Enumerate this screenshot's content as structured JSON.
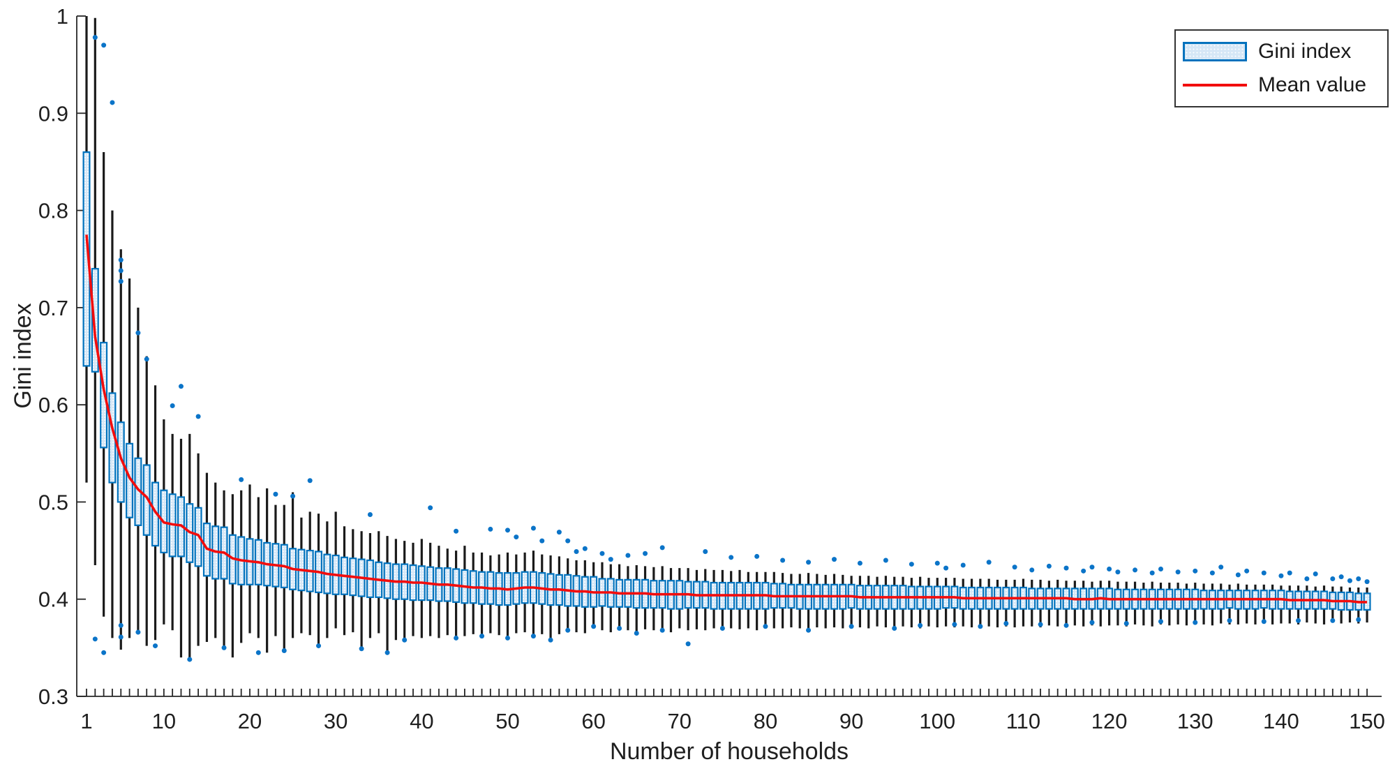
{
  "figure": {
    "background": "#ffffff"
  },
  "legend": {
    "items": [
      {
        "label": "Gini index",
        "swatch": "box-swatch"
      },
      {
        "label": "Mean value",
        "swatch": "line-swatch"
      }
    ]
  },
  "colors": {
    "box_edge": "#0072bd",
    "box_fill": "#d6e7f6",
    "whisker": "#1a1a1a",
    "mean_line": "#f20d0d",
    "outlier": "#0b74c8",
    "axis": "#262626",
    "tick_text": "#1f1f1f",
    "background": "#ffffff"
  },
  "chart_data": {
    "type": "boxplot",
    "title": "",
    "xlabel": "Number of households",
    "ylabel": "Gini index",
    "xlim": [
      0,
      151
    ],
    "ylim": [
      0.3,
      1.0
    ],
    "grid": false,
    "legend_position": "top-right-inside",
    "x_major_ticks": [
      1,
      10,
      20,
      30,
      40,
      50,
      60,
      70,
      80,
      90,
      100,
      110,
      120,
      130,
      140,
      150
    ],
    "x_minor_tick_step": 1,
    "y_ticks": [
      0.3,
      0.4,
      0.5,
      0.6,
      0.7,
      0.8,
      0.9,
      1.0
    ],
    "y_tick_labels": [
      "0.3",
      "0.4",
      "0.5",
      "0.6",
      "0.7",
      "0.8",
      "0.9",
      "1"
    ],
    "series": {
      "n_range": [
        1,
        150
      ],
      "mean": [
        0.775,
        0.67,
        0.616,
        0.576,
        0.545,
        0.525,
        0.513,
        0.505,
        0.49,
        0.479,
        0.477,
        0.476,
        0.469,
        0.466,
        0.452,
        0.449,
        0.448,
        0.442,
        0.44,
        0.439,
        0.438,
        0.436,
        0.435,
        0.434,
        0.431,
        0.43,
        0.429,
        0.428,
        0.426,
        0.425,
        0.424,
        0.423,
        0.422,
        0.421,
        0.42,
        0.419,
        0.418,
        0.418,
        0.417,
        0.417,
        0.416,
        0.415,
        0.415,
        0.414,
        0.413,
        0.412,
        0.412,
        0.411,
        0.411,
        0.41,
        0.411,
        0.412,
        0.412,
        0.411,
        0.41,
        0.41,
        0.409,
        0.408,
        0.408,
        0.407,
        0.407,
        0.407,
        0.406,
        0.406,
        0.406,
        0.406,
        0.405,
        0.405,
        0.405,
        0.405,
        0.405,
        0.404,
        0.404,
        0.404,
        0.404,
        0.404,
        0.404,
        0.404,
        0.404,
        0.404,
        0.403,
        0.403,
        0.403,
        0.403,
        0.403,
        0.403,
        0.403,
        0.403,
        0.403,
        0.403,
        0.402,
        0.402,
        0.402,
        0.402,
        0.402,
        0.402,
        0.402,
        0.402,
        0.402,
        0.402,
        0.402,
        0.402,
        0.401,
        0.401,
        0.401,
        0.401,
        0.401,
        0.401,
        0.401,
        0.401,
        0.401,
        0.401,
        0.401,
        0.401,
        0.401,
        0.4,
        0.4,
        0.4,
        0.401,
        0.4,
        0.4,
        0.4,
        0.4,
        0.4,
        0.4,
        0.4,
        0.4,
        0.4,
        0.4,
        0.4,
        0.4,
        0.4,
        0.4,
        0.4,
        0.4,
        0.4,
        0.4,
        0.4,
        0.4,
        0.4,
        0.399,
        0.399,
        0.399,
        0.399,
        0.399,
        0.398,
        0.398,
        0.398,
        0.397,
        0.397
      ],
      "q1": [
        0.64,
        0.634,
        0.556,
        0.52,
        0.5,
        0.484,
        0.476,
        0.466,
        0.455,
        0.448,
        0.444,
        0.444,
        0.438,
        0.434,
        0.424,
        0.421,
        0.421,
        0.416,
        0.415,
        0.415,
        0.415,
        0.414,
        0.413,
        0.412,
        0.41,
        0.409,
        0.408,
        0.407,
        0.406,
        0.405,
        0.405,
        0.404,
        0.403,
        0.402,
        0.402,
        0.401,
        0.4,
        0.4,
        0.399,
        0.399,
        0.399,
        0.398,
        0.398,
        0.397,
        0.396,
        0.396,
        0.395,
        0.395,
        0.394,
        0.394,
        0.395,
        0.396,
        0.396,
        0.395,
        0.394,
        0.394,
        0.393,
        0.393,
        0.392,
        0.392,
        0.393,
        0.392,
        0.392,
        0.392,
        0.391,
        0.391,
        0.391,
        0.391,
        0.39,
        0.39,
        0.391,
        0.391,
        0.391,
        0.39,
        0.39,
        0.39,
        0.39,
        0.39,
        0.39,
        0.39,
        0.391,
        0.391,
        0.391,
        0.39,
        0.39,
        0.39,
        0.39,
        0.39,
        0.39,
        0.391,
        0.39,
        0.39,
        0.39,
        0.39,
        0.39,
        0.39,
        0.39,
        0.39,
        0.39,
        0.39,
        0.391,
        0.391,
        0.39,
        0.39,
        0.39,
        0.39,
        0.39,
        0.39,
        0.39,
        0.39,
        0.39,
        0.39,
        0.39,
        0.39,
        0.39,
        0.39,
        0.39,
        0.39,
        0.39,
        0.39,
        0.39,
        0.39,
        0.39,
        0.39,
        0.39,
        0.39,
        0.39,
        0.39,
        0.39,
        0.39,
        0.39,
        0.39,
        0.39,
        0.391,
        0.39,
        0.39,
        0.39,
        0.391,
        0.39,
        0.39,
        0.39,
        0.39,
        0.39,
        0.39,
        0.39,
        0.39,
        0.389,
        0.389,
        0.389,
        0.389
      ],
      "q3": [
        0.86,
        0.74,
        0.664,
        0.612,
        0.582,
        0.56,
        0.545,
        0.538,
        0.52,
        0.512,
        0.508,
        0.505,
        0.498,
        0.494,
        0.478,
        0.475,
        0.474,
        0.466,
        0.464,
        0.462,
        0.461,
        0.458,
        0.457,
        0.456,
        0.452,
        0.451,
        0.45,
        0.449,
        0.446,
        0.445,
        0.443,
        0.442,
        0.441,
        0.44,
        0.438,
        0.437,
        0.436,
        0.436,
        0.435,
        0.434,
        0.433,
        0.432,
        0.432,
        0.431,
        0.43,
        0.429,
        0.428,
        0.428,
        0.427,
        0.427,
        0.427,
        0.428,
        0.428,
        0.427,
        0.426,
        0.425,
        0.425,
        0.424,
        0.423,
        0.423,
        0.421,
        0.421,
        0.42,
        0.42,
        0.42,
        0.42,
        0.419,
        0.419,
        0.419,
        0.419,
        0.418,
        0.418,
        0.418,
        0.417,
        0.417,
        0.417,
        0.417,
        0.417,
        0.417,
        0.417,
        0.416,
        0.416,
        0.415,
        0.415,
        0.415,
        0.415,
        0.415,
        0.415,
        0.415,
        0.415,
        0.414,
        0.414,
        0.414,
        0.414,
        0.414,
        0.414,
        0.413,
        0.413,
        0.413,
        0.413,
        0.413,
        0.413,
        0.412,
        0.412,
        0.412,
        0.412,
        0.412,
        0.412,
        0.412,
        0.412,
        0.411,
        0.411,
        0.411,
        0.411,
        0.411,
        0.411,
        0.411,
        0.411,
        0.411,
        0.411,
        0.41,
        0.41,
        0.41,
        0.41,
        0.41,
        0.41,
        0.41,
        0.41,
        0.41,
        0.41,
        0.409,
        0.409,
        0.409,
        0.409,
        0.409,
        0.409,
        0.409,
        0.409,
        0.409,
        0.409,
        0.408,
        0.408,
        0.408,
        0.408,
        0.408,
        0.407,
        0.407,
        0.407,
        0.406,
        0.406
      ],
      "whisker_low": [
        0.52,
        0.435,
        0.382,
        0.36,
        0.348,
        0.36,
        0.368,
        0.352,
        0.358,
        0.374,
        0.368,
        0.34,
        0.338,
        0.352,
        0.356,
        0.36,
        0.35,
        0.34,
        0.355,
        0.365,
        0.36,
        0.345,
        0.362,
        0.347,
        0.36,
        0.365,
        0.363,
        0.352,
        0.36,
        0.37,
        0.363,
        0.366,
        0.349,
        0.36,
        0.365,
        0.345,
        0.358,
        0.358,
        0.362,
        0.36,
        0.362,
        0.36,
        0.363,
        0.36,
        0.362,
        0.364,
        0.362,
        0.365,
        0.363,
        0.36,
        0.365,
        0.366,
        0.362,
        0.364,
        0.358,
        0.364,
        0.368,
        0.366,
        0.365,
        0.372,
        0.368,
        0.366,
        0.37,
        0.368,
        0.365,
        0.369,
        0.368,
        0.368,
        0.366,
        0.37,
        0.368,
        0.369,
        0.368,
        0.37,
        0.368,
        0.37,
        0.369,
        0.37,
        0.368,
        0.371,
        0.37,
        0.37,
        0.371,
        0.37,
        0.369,
        0.371,
        0.37,
        0.371,
        0.37,
        0.372,
        0.371,
        0.37,
        0.372,
        0.371,
        0.37,
        0.372,
        0.371,
        0.37,
        0.372,
        0.371,
        0.372,
        0.371,
        0.372,
        0.371,
        0.37,
        0.372,
        0.371,
        0.372,
        0.371,
        0.372,
        0.372,
        0.371,
        0.373,
        0.372,
        0.371,
        0.373,
        0.372,
        0.373,
        0.372,
        0.373,
        0.373,
        0.372,
        0.374,
        0.373,
        0.372,
        0.374,
        0.373,
        0.374,
        0.373,
        0.374,
        0.374,
        0.373,
        0.375,
        0.374,
        0.374,
        0.375,
        0.374,
        0.375,
        0.374,
        0.375,
        0.375,
        0.374,
        0.376,
        0.375,
        0.374,
        0.376,
        0.375,
        0.376,
        0.375,
        0.376
      ],
      "whisker_high": [
        1.0,
        0.998,
        0.86,
        0.8,
        0.76,
        0.73,
        0.7,
        0.65,
        0.62,
        0.585,
        0.57,
        0.565,
        0.57,
        0.55,
        0.53,
        0.52,
        0.512,
        0.508,
        0.512,
        0.518,
        0.505,
        0.514,
        0.497,
        0.497,
        0.51,
        0.484,
        0.49,
        0.488,
        0.48,
        0.49,
        0.475,
        0.472,
        0.47,
        0.468,
        0.47,
        0.465,
        0.462,
        0.46,
        0.458,
        0.462,
        0.458,
        0.455,
        0.452,
        0.45,
        0.455,
        0.448,
        0.448,
        0.445,
        0.446,
        0.448,
        0.446,
        0.448,
        0.45,
        0.446,
        0.445,
        0.444,
        0.442,
        0.44,
        0.44,
        0.438,
        0.438,
        0.436,
        0.436,
        0.434,
        0.435,
        0.434,
        0.433,
        0.434,
        0.432,
        0.432,
        0.432,
        0.43,
        0.431,
        0.43,
        0.43,
        0.429,
        0.43,
        0.428,
        0.428,
        0.428,
        0.428,
        0.427,
        0.426,
        0.426,
        0.427,
        0.426,
        0.425,
        0.426,
        0.425,
        0.424,
        0.424,
        0.424,
        0.423,
        0.424,
        0.423,
        0.423,
        0.422,
        0.423,
        0.422,
        0.422,
        0.422,
        0.422,
        0.421,
        0.421,
        0.421,
        0.421,
        0.42,
        0.42,
        0.42,
        0.421,
        0.42,
        0.42,
        0.419,
        0.42,
        0.419,
        0.419,
        0.419,
        0.418,
        0.419,
        0.419,
        0.418,
        0.418,
        0.418,
        0.417,
        0.418,
        0.417,
        0.417,
        0.417,
        0.416,
        0.417,
        0.416,
        0.416,
        0.416,
        0.415,
        0.416,
        0.415,
        0.415,
        0.415,
        0.415,
        0.414,
        0.414,
        0.414,
        0.414,
        0.413,
        0.414,
        0.413,
        0.413,
        0.412,
        0.412,
        0.412
      ]
    },
    "outliers": [
      [
        2,
        0.978
      ],
      [
        2,
        0.359
      ],
      [
        3,
        0.97
      ],
      [
        3,
        0.345
      ],
      [
        4,
        0.911
      ],
      [
        5,
        0.749
      ],
      [
        5,
        0.738
      ],
      [
        5,
        0.727
      ],
      [
        5,
        0.373
      ],
      [
        5,
        0.361
      ],
      [
        7,
        0.674
      ],
      [
        7,
        0.366
      ],
      [
        8,
        0.647
      ],
      [
        9,
        0.352
      ],
      [
        11,
        0.599
      ],
      [
        12,
        0.619
      ],
      [
        13,
        0.338
      ],
      [
        14,
        0.588
      ],
      [
        17,
        0.35
      ],
      [
        19,
        0.523
      ],
      [
        21,
        0.345
      ],
      [
        23,
        0.508
      ],
      [
        24,
        0.347
      ],
      [
        25,
        0.506
      ],
      [
        27,
        0.522
      ],
      [
        28,
        0.352
      ],
      [
        33,
        0.349
      ],
      [
        34,
        0.487
      ],
      [
        36,
        0.345
      ],
      [
        38,
        0.358
      ],
      [
        41,
        0.494
      ],
      [
        44,
        0.47
      ],
      [
        44,
        0.36
      ],
      [
        47,
        0.362
      ],
      [
        48,
        0.472
      ],
      [
        50,
        0.471
      ],
      [
        50,
        0.36
      ],
      [
        51,
        0.464
      ],
      [
        53,
        0.473
      ],
      [
        53,
        0.362
      ],
      [
        54,
        0.46
      ],
      [
        55,
        0.358
      ],
      [
        56,
        0.469
      ],
      [
        57,
        0.46
      ],
      [
        57,
        0.368
      ],
      [
        58,
        0.449
      ],
      [
        59,
        0.452
      ],
      [
        60,
        0.372
      ],
      [
        61,
        0.447
      ],
      [
        62,
        0.441
      ],
      [
        63,
        0.37
      ],
      [
        64,
        0.445
      ],
      [
        65,
        0.365
      ],
      [
        66,
        0.447
      ],
      [
        68,
        0.453
      ],
      [
        68,
        0.368
      ],
      [
        71,
        0.354
      ],
      [
        73,
        0.449
      ],
      [
        75,
        0.37
      ],
      [
        76,
        0.443
      ],
      [
        79,
        0.444
      ],
      [
        80,
        0.372
      ],
      [
        82,
        0.44
      ],
      [
        85,
        0.438
      ],
      [
        85,
        0.368
      ],
      [
        88,
        0.441
      ],
      [
        90,
        0.372
      ],
      [
        91,
        0.437
      ],
      [
        94,
        0.44
      ],
      [
        95,
        0.37
      ],
      [
        97,
        0.436
      ],
      [
        98,
        0.373
      ],
      [
        100,
        0.437
      ],
      [
        101,
        0.432
      ],
      [
        102,
        0.374
      ],
      [
        103,
        0.435
      ],
      [
        105,
        0.372
      ],
      [
        106,
        0.438
      ],
      [
        108,
        0.375
      ],
      [
        109,
        0.433
      ],
      [
        111,
        0.43
      ],
      [
        112,
        0.374
      ],
      [
        113,
        0.434
      ],
      [
        115,
        0.432
      ],
      [
        115,
        0.373
      ],
      [
        117,
        0.429
      ],
      [
        118,
        0.433
      ],
      [
        118,
        0.376
      ],
      [
        120,
        0.431
      ],
      [
        121,
        0.428
      ],
      [
        122,
        0.375
      ],
      [
        123,
        0.43
      ],
      [
        125,
        0.427
      ],
      [
        126,
        0.431
      ],
      [
        126,
        0.377
      ],
      [
        128,
        0.428
      ],
      [
        130,
        0.429
      ],
      [
        130,
        0.376
      ],
      [
        132,
        0.427
      ],
      [
        133,
        0.433
      ],
      [
        134,
        0.378
      ],
      [
        135,
        0.425
      ],
      [
        136,
        0.429
      ],
      [
        138,
        0.427
      ],
      [
        138,
        0.377
      ],
      [
        140,
        0.424
      ],
      [
        141,
        0.427
      ],
      [
        142,
        0.378
      ],
      [
        143,
        0.421
      ],
      [
        144,
        0.426
      ],
      [
        146,
        0.421
      ],
      [
        146,
        0.378
      ],
      [
        147,
        0.423
      ],
      [
        148,
        0.419
      ],
      [
        149,
        0.421
      ],
      [
        149,
        0.379
      ],
      [
        150,
        0.418
      ]
    ]
  }
}
